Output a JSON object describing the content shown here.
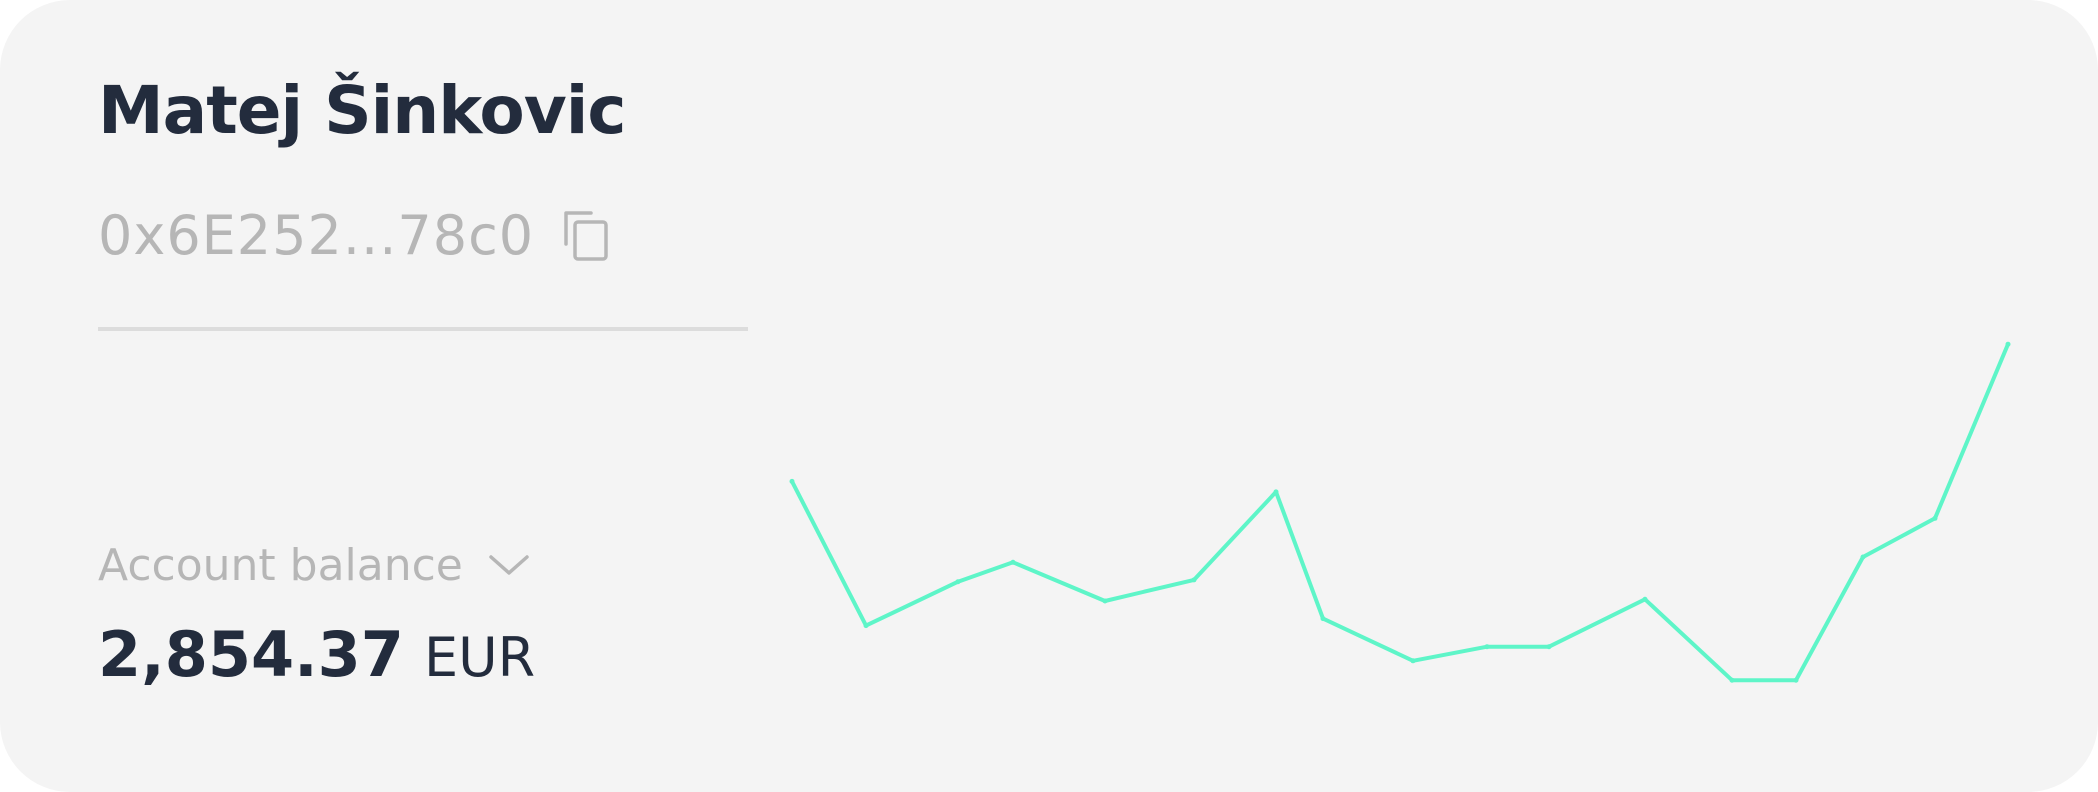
{
  "profile": {
    "name": "Matej Šinkovic",
    "wallet_address": "0x6E252...78c0"
  },
  "balance": {
    "label": "Account balance",
    "value": "2,854.37",
    "currency": "EUR"
  },
  "icons": {
    "copy": "copy-icon",
    "dropdown": "chevron-down-icon"
  },
  "colors": {
    "accent": "#5ef5c8",
    "text_primary": "#232c3d",
    "text_muted": "#b6b6b6",
    "card_background": "#f4f4f4"
  },
  "chart_data": {
    "type": "line",
    "series": [
      {
        "values": [
          8.2,
          0,
          2.5,
          3.6,
          1.4,
          2.6,
          7.6,
          0.4,
          -2.0,
          -1.2,
          -1.2,
          1.5,
          -3.1,
          -3.1,
          3.9,
          6.1,
          16.0
        ]
      }
    ],
    "ylim": [
      -4,
      18
    ],
    "grid": false,
    "legend": "none"
  }
}
